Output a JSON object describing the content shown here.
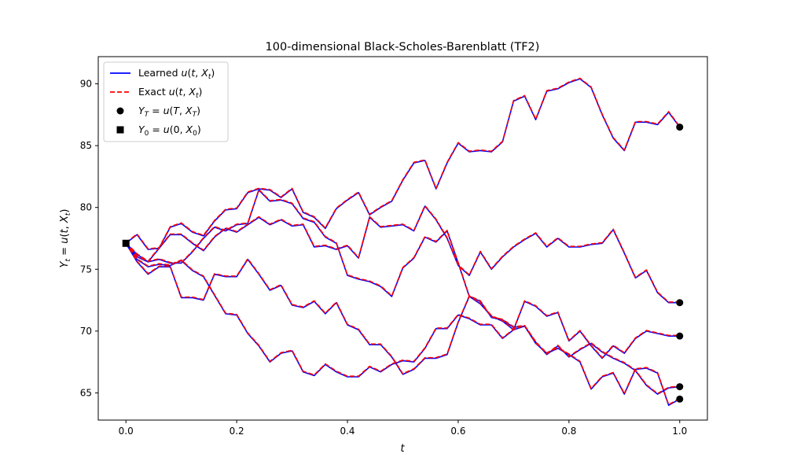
{
  "chart_data": {
    "type": "line",
    "title": "100-dimensional Black-Scholes-Barenblatt (TF2)",
    "xlabel": "t",
    "ylabel": "Y_t = u(t, X_t)",
    "xlim": [
      -0.05,
      1.05
    ],
    "ylim": [
      62.8,
      92.2
    ],
    "xticks": [
      0.0,
      0.2,
      0.4,
      0.6,
      0.8,
      1.0
    ],
    "xtick_labels": [
      "0.0",
      "0.2",
      "0.4",
      "0.6",
      "0.8",
      "1.0"
    ],
    "yticks": [
      65,
      70,
      75,
      80,
      85,
      90
    ],
    "ytick_labels": [
      "65",
      "70",
      "75",
      "80",
      "85",
      "90"
    ],
    "grid": false,
    "legend_position": "upper left",
    "legend": [
      {
        "label": "Learned u(t, X_t)",
        "style": "solid-line",
        "color": "#0000ff"
      },
      {
        "label": "Exact u(t, X_t)",
        "style": "dashed-line",
        "color": "#ff0000"
      },
      {
        "label": "Y_T = u(T, X_T)",
        "style": "circle-marker",
        "color": "#000000"
      },
      {
        "label": "Y_0 = u(0, X_0)",
        "style": "square-marker",
        "color": "#000000"
      }
    ],
    "x": [
      0.0,
      0.02,
      0.04,
      0.06,
      0.08,
      0.1,
      0.12,
      0.14,
      0.16,
      0.18,
      0.2,
      0.22,
      0.24,
      0.26,
      0.28,
      0.3,
      0.32,
      0.34,
      0.36,
      0.38,
      0.4,
      0.42,
      0.44,
      0.46,
      0.48,
      0.5,
      0.52,
      0.54,
      0.56,
      0.58,
      0.6,
      0.62,
      0.64,
      0.66,
      0.68,
      0.7,
      0.72,
      0.74,
      0.76,
      0.78,
      0.8,
      0.82,
      0.84,
      0.86,
      0.88,
      0.9,
      0.92,
      0.94,
      0.96,
      0.98,
      1.0
    ],
    "series": [
      {
        "values": [
          77.1,
          77.8,
          76.6,
          76.7,
          78.4,
          78.7,
          78.0,
          77.7,
          78.9,
          79.8,
          79.9,
          81.2,
          81.5,
          81.4,
          80.8,
          81.5,
          79.6,
          79.2,
          78.3,
          79.9,
          80.6,
          81.2,
          79.4,
          80.0,
          80.5,
          82.2,
          83.6,
          83.8,
          81.5,
          83.6,
          85.2,
          84.5,
          84.6,
          84.5,
          85.3,
          88.6,
          89.0,
          87.1,
          89.4,
          89.6,
          90.1,
          90.4,
          89.7,
          87.5,
          85.6,
          84.6,
          86.9,
          86.9,
          86.7,
          87.7,
          86.5
        ]
      },
      {
        "values": [
          77.1,
          76.2,
          75.6,
          76.7,
          77.8,
          77.8,
          77.1,
          76.5,
          77.6,
          78.3,
          78.0,
          78.6,
          79.2,
          78.6,
          79.0,
          78.5,
          78.6,
          76.8,
          76.9,
          76.6,
          76.9,
          75.9,
          79.2,
          78.4,
          78.5,
          78.6,
          78.1,
          80.1,
          79.0,
          77.5,
          75.3,
          74.5,
          76.4,
          75.0,
          76.0,
          76.8,
          77.4,
          77.9,
          76.8,
          77.5,
          76.8,
          76.8,
          77.0,
          77.1,
          78.2,
          76.3,
          74.3,
          74.9,
          73.1,
          72.3,
          72.3
        ]
      },
      {
        "values": [
          77.1,
          76.0,
          75.6,
          75.8,
          75.5,
          75.5,
          76.4,
          77.5,
          78.4,
          78.1,
          78.6,
          78.7,
          81.4,
          80.5,
          80.6,
          80.3,
          79.1,
          78.8,
          77.6,
          77.1,
          74.5,
          74.2,
          74.0,
          73.6,
          72.8,
          75.1,
          75.9,
          77.6,
          77.2,
          78.1,
          75.5,
          72.8,
          72.2,
          71.2,
          70.8,
          70.1,
          72.4,
          72.0,
          71.2,
          71.5,
          69.2,
          70.0,
          68.8,
          67.8,
          68.8,
          68.2,
          69.4,
          70.0,
          69.8,
          69.6,
          69.6
        ]
      },
      {
        "values": [
          77.1,
          75.6,
          74.6,
          75.2,
          75.2,
          72.7,
          72.7,
          72.5,
          74.6,
          74.4,
          74.4,
          75.8,
          74.6,
          73.3,
          73.7,
          72.1,
          71.9,
          72.4,
          71.4,
          72.3,
          70.5,
          70.1,
          68.9,
          68.9,
          67.9,
          66.5,
          66.9,
          67.8,
          67.8,
          68.1,
          70.7,
          72.8,
          72.4,
          71.1,
          70.9,
          70.3,
          70.4,
          69.0,
          68.2,
          68.6,
          68.1,
          67.5,
          65.3,
          66.3,
          66.6,
          64.9,
          66.9,
          67.0,
          66.6,
          64.0,
          64.5
        ]
      },
      {
        "values": [
          77.1,
          75.8,
          75.2,
          75.4,
          75.3,
          75.7,
          74.9,
          74.4,
          72.9,
          71.4,
          71.3,
          69.8,
          68.8,
          67.5,
          68.2,
          68.4,
          66.7,
          66.4,
          67.3,
          66.7,
          66.3,
          66.3,
          67.1,
          66.7,
          67.3,
          67.6,
          67.5,
          68.6,
          70.2,
          70.2,
          71.3,
          71.0,
          70.5,
          70.5,
          69.4,
          70.1,
          70.4,
          69.1,
          68.1,
          68.8,
          67.9,
          68.5,
          69.0,
          68.3,
          67.8,
          67.4,
          66.8,
          65.6,
          64.9,
          65.4,
          65.5
        ]
      }
    ],
    "line_colors": {
      "learned": "#0000ff",
      "exact": "#ff0000"
    },
    "terminal_values": [
      86.5,
      72.3,
      69.6,
      64.5,
      65.5
    ],
    "initial_value": 77.1
  }
}
